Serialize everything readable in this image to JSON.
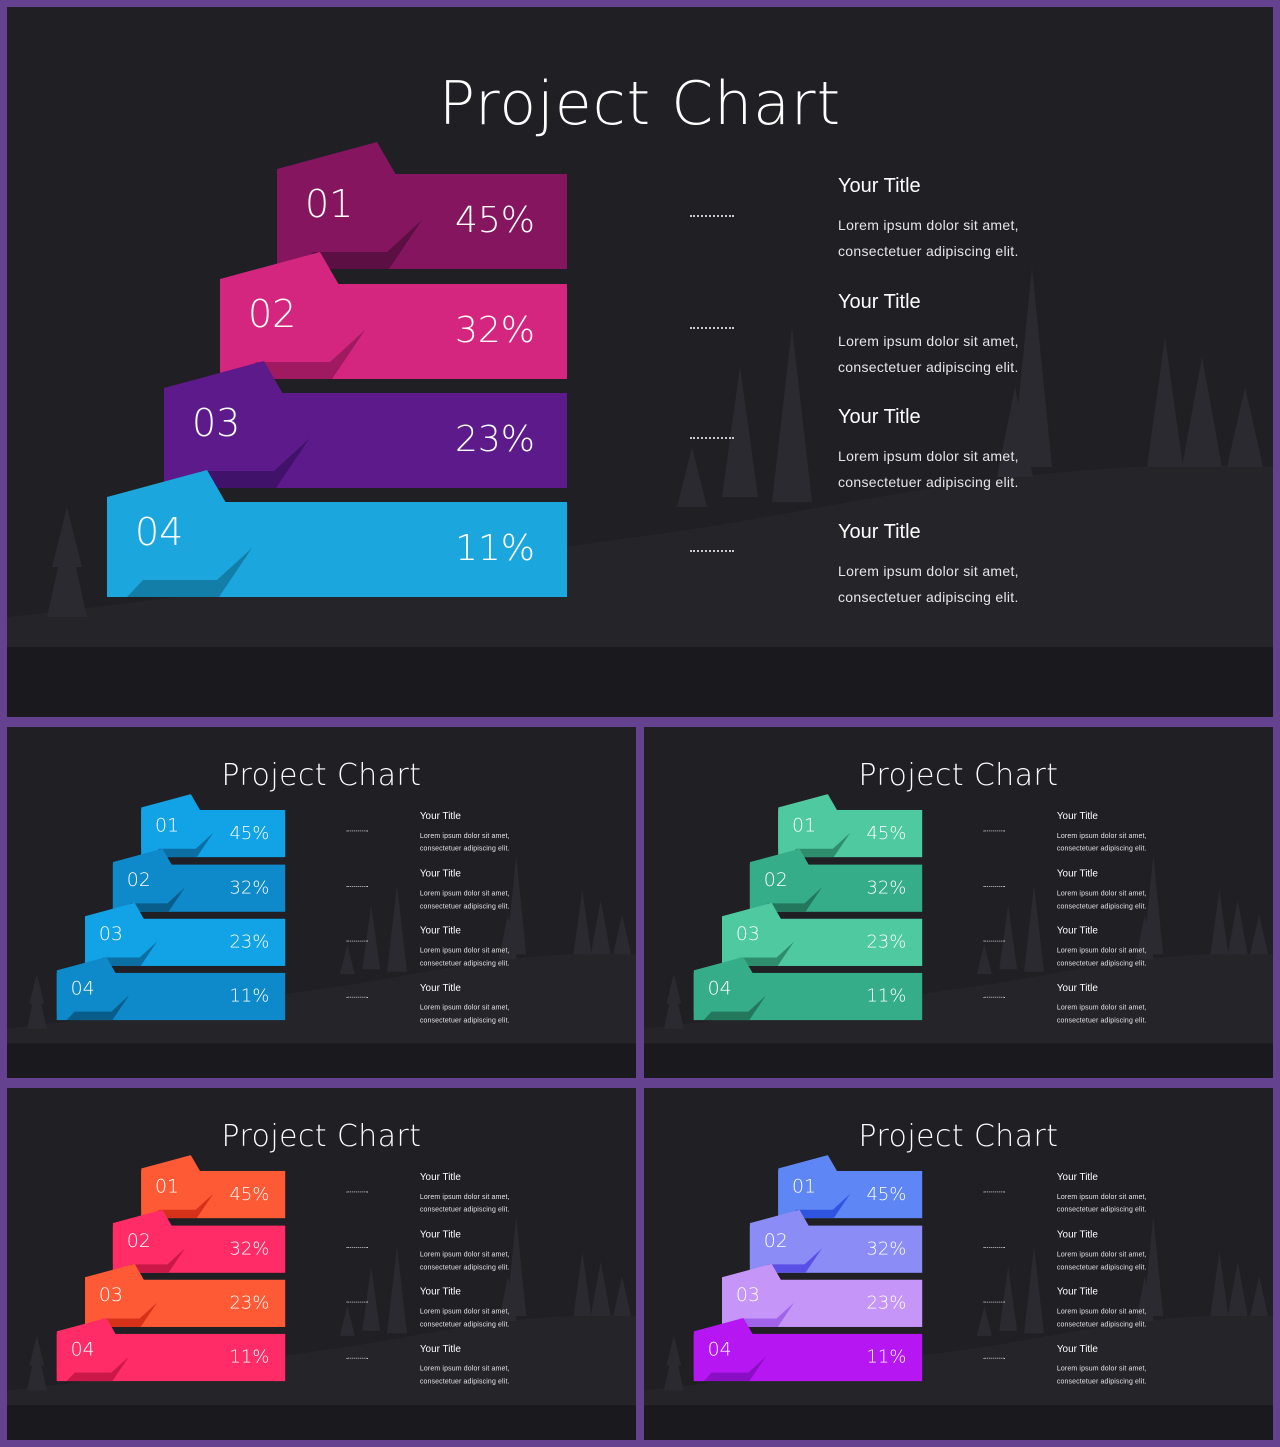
{
  "slides": [
    {
      "title": "Project Chart",
      "palette": {
        "bar": [
          "#86155f",
          "#d4257f",
          "#5d1a8a",
          "#1ba7dd"
        ],
        "tab": [
          "#86155f",
          "#d4257f",
          "#5d1a8a",
          "#1ba7dd"
        ],
        "fold": [
          "#5c0f43",
          "#a01a62",
          "#40126a",
          "#137ea8"
        ]
      },
      "rows": [
        {
          "num": "01",
          "pct": "45%"
        },
        {
          "num": "02",
          "pct": "32%"
        },
        {
          "num": "03",
          "pct": "23%"
        },
        {
          "num": "04",
          "pct": "11%"
        }
      ],
      "items": [
        {
          "title": "Your Title",
          "line1": "Lorem ipsum dolor sit amet,",
          "line2": "consectetuer adipiscing elit."
        },
        {
          "title": "Your Title",
          "line1": "Lorem ipsum dolor sit amet,",
          "line2": "consectetuer adipiscing elit."
        },
        {
          "title": "Your Title",
          "line1": "Lorem ipsum dolor sit amet,",
          "line2": "consectetuer adipiscing elit."
        },
        {
          "title": "Your Title",
          "line1": "Lorem ipsum dolor sit amet,",
          "line2": "consectetuer adipiscing elit."
        }
      ]
    },
    {
      "title": "Project Chart",
      "palette": {
        "bar": [
          "#12a2e6",
          "#0e89c9",
          "#12a2e6",
          "#0e89c9"
        ],
        "tab": [
          "#12a2e6",
          "#0e89c9",
          "#12a2e6",
          "#0e89c9"
        ],
        "fold": [
          "#0b6fa4",
          "#085d8a",
          "#0b6fa4",
          "#085d8a"
        ]
      },
      "rows": [
        {
          "num": "01",
          "pct": "45%"
        },
        {
          "num": "02",
          "pct": "32%"
        },
        {
          "num": "03",
          "pct": "23%"
        },
        {
          "num": "04",
          "pct": "11%"
        }
      ],
      "items": [
        {
          "title": "Your Title",
          "line1": "Lorem ipsum dolor sit amet,",
          "line2": "consectetuer adipiscing elit."
        },
        {
          "title": "Your Title",
          "line1": "Lorem ipsum dolor sit amet,",
          "line2": "consectetuer adipiscing elit."
        },
        {
          "title": "Your Title",
          "line1": "Lorem ipsum dolor sit amet,",
          "line2": "consectetuer adipiscing elit."
        },
        {
          "title": "Your Title",
          "line1": "Lorem ipsum dolor sit amet,",
          "line2": "consectetuer adipiscing elit."
        }
      ]
    },
    {
      "title": "Project Chart",
      "palette": {
        "bar": [
          "#4fcaa0",
          "#35ad88",
          "#4fcaa0",
          "#35ad88"
        ],
        "tab": [
          "#4fcaa0",
          "#35ad88",
          "#4fcaa0",
          "#35ad88"
        ],
        "fold": [
          "#2e8d6d",
          "#23775c",
          "#2e8d6d",
          "#23775c"
        ]
      },
      "rows": [
        {
          "num": "01",
          "pct": "45%"
        },
        {
          "num": "02",
          "pct": "32%"
        },
        {
          "num": "03",
          "pct": "23%"
        },
        {
          "num": "04",
          "pct": "11%"
        }
      ],
      "items": [
        {
          "title": "Your Title",
          "line1": "Lorem ipsum dolor sit amet,",
          "line2": "consectetuer adipiscing elit."
        },
        {
          "title": "Your Title",
          "line1": "Lorem ipsum dolor sit amet,",
          "line2": "consectetuer adipiscing elit."
        },
        {
          "title": "Your Title",
          "line1": "Lorem ipsum dolor sit amet,",
          "line2": "consectetuer adipiscing elit."
        },
        {
          "title": "Your Title",
          "line1": "Lorem ipsum dolor sit amet,",
          "line2": "consectetuer adipiscing elit."
        }
      ]
    },
    {
      "title": "Project Chart",
      "palette": {
        "bar": [
          "#ff5a36",
          "#ff2c68",
          "#ff5a36",
          "#ff2c68"
        ],
        "tab": [
          "#ff5a36",
          "#ff2c68",
          "#ff5a36",
          "#ff2c68"
        ],
        "fold": [
          "#d6321a",
          "#cc1848",
          "#d6321a",
          "#cc1848"
        ]
      },
      "rows": [
        {
          "num": "01",
          "pct": "45%"
        },
        {
          "num": "02",
          "pct": "32%"
        },
        {
          "num": "03",
          "pct": "23%"
        },
        {
          "num": "04",
          "pct": "11%"
        }
      ],
      "items": [
        {
          "title": "Your Title",
          "line1": "Lorem ipsum dolor sit amet,",
          "line2": "consectetuer adipiscing elit."
        },
        {
          "title": "Your Title",
          "line1": "Lorem ipsum dolor sit amet,",
          "line2": "consectetuer adipiscing elit."
        },
        {
          "title": "Your Title",
          "line1": "Lorem ipsum dolor sit amet,",
          "line2": "consectetuer adipiscing elit."
        },
        {
          "title": "Your Title",
          "line1": "Lorem ipsum dolor sit amet,",
          "line2": "consectetuer adipiscing elit."
        }
      ]
    },
    {
      "title": "Project Chart",
      "palette": {
        "bar": [
          "#5f86f5",
          "#8b8cf6",
          "#c596f8",
          "#b516f2"
        ],
        "tab": [
          "#5f86f5",
          "#8b8cf6",
          "#c596f8",
          "#b516f2"
        ],
        "fold": [
          "#2f55e0",
          "#5a4fe6",
          "#a163ea",
          "#8a0fc4"
        ]
      },
      "rows": [
        {
          "num": "01",
          "pct": "45%"
        },
        {
          "num": "02",
          "pct": "32%"
        },
        {
          "num": "03",
          "pct": "23%"
        },
        {
          "num": "04",
          "pct": "11%"
        }
      ],
      "items": [
        {
          "title": "Your Title",
          "line1": "Lorem ipsum dolor sit amet,",
          "line2": "consectetuer adipiscing elit."
        },
        {
          "title": "Your Title",
          "line1": "Lorem ipsum dolor sit amet,",
          "line2": "consectetuer adipiscing elit."
        },
        {
          "title": "Your Title",
          "line1": "Lorem ipsum dolor sit amet,",
          "line2": "consectetuer adipiscing elit."
        },
        {
          "title": "Your Title",
          "line1": "Lorem ipsum dolor sit amet,",
          "line2": "consectetuer adipiscing elit."
        }
      ]
    }
  ]
}
